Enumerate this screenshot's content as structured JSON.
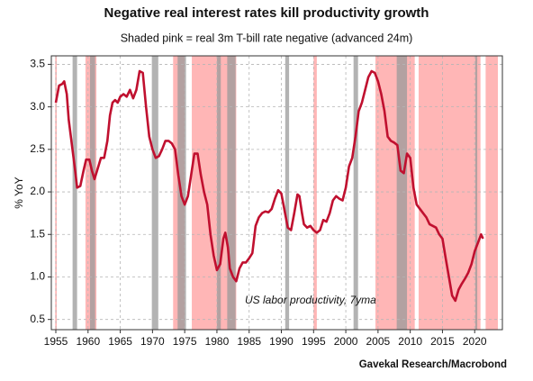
{
  "chart_data": {
    "type": "line",
    "title": "Negative real interest rates kill productivity growth",
    "subtitle": "Shaded pink = real 3m T-bill rate negative (advanced 24m)",
    "y_label": "% YoY",
    "source": "Gavekal Research/Macrobond",
    "xlim": [
      1954.3,
      2024.3
    ],
    "ylim": [
      0.38,
      3.6
    ],
    "xticks": [
      1955,
      1960,
      1965,
      1970,
      1975,
      1980,
      1985,
      1990,
      1995,
      2000,
      2005,
      2010,
      2015,
      2020
    ],
    "yticks": [
      0.5,
      {
        "value": 1,
        "label": "1.0"
      },
      1.5,
      {
        "value": 2,
        "label": "2.0"
      },
      2.5,
      {
        "value": 3,
        "label": "3.0"
      },
      3.5
    ],
    "grid": true,
    "negative_real_rate": {
      "color": "#ffb6b6",
      "spans": [
        [
          1954.9,
          1955.15
        ],
        [
          1959.6,
          1961.3
        ],
        [
          1973.2,
          1975.0
        ],
        [
          1976.1,
          1983.0
        ],
        [
          1995.0,
          1995.5
        ],
        [
          2004.6,
          2010.7
        ],
        [
          2011.3,
          2020.9
        ],
        [
          2021.7,
          2023.6
        ]
      ]
    },
    "recessions": {
      "color": "#999999",
      "spans": [
        [
          1957.6,
          1958.3
        ],
        [
          1960.3,
          1961.1
        ],
        [
          1969.9,
          1970.9
        ],
        [
          1973.9,
          1975.2
        ],
        [
          1980.0,
          1980.6
        ],
        [
          1981.6,
          1982.9
        ],
        [
          1990.6,
          1991.2
        ],
        [
          2001.2,
          2001.9
        ],
        [
          2007.9,
          2009.5
        ],
        [
          2020.1,
          2020.4
        ]
      ]
    },
    "x": [
      1955,
      1955.5,
      1956,
      1956.3,
      1956.7,
      1957,
      1957.5,
      1958,
      1958.3,
      1958.8,
      1959.3,
      1959.7,
      1960.2,
      1960.6,
      1961,
      1961.4,
      1962,
      1962.5,
      1963,
      1963.4,
      1963.8,
      1964.2,
      1964.6,
      1965,
      1965.5,
      1966,
      1966.5,
      1967,
      1967.5,
      1968,
      1968.5,
      1969,
      1969.5,
      1970,
      1970.5,
      1971,
      1971.5,
      1972,
      1972.5,
      1973,
      1973.5,
      1974,
      1974.5,
      1975,
      1975.5,
      1976,
      1976.5,
      1977,
      1977.5,
      1978,
      1978.5,
      1979,
      1979.5,
      1980,
      1980.5,
      1981,
      1981.3,
      1981.7,
      1982,
      1982.5,
      1983,
      1983.5,
      1984,
      1984.5,
      1985,
      1985.5,
      1986,
      1986.5,
      1987,
      1987.5,
      1988,
      1988.5,
      1989,
      1989.5,
      1990,
      1990.5,
      1991,
      1991.5,
      1992,
      1992.5,
      1992.8,
      1993.2,
      1993.5,
      1994,
      1994.5,
      1995,
      1995.5,
      1996,
      1996.5,
      1997,
      1997.5,
      1998,
      1998.5,
      1999,
      1999.5,
      2000,
      2000.5,
      2001,
      2001.5,
      2002,
      2002.5,
      2003,
      2003.5,
      2004,
      2004.5,
      2005,
      2005.5,
      2006,
      2006.5,
      2007,
      2007.5,
      2008,
      2008.5,
      2009,
      2009.5,
      2010,
      2010.5,
      2011,
      2011.5,
      2012,
      2012.5,
      2013,
      2013.5,
      2014,
      2014.5,
      2015,
      2015.5,
      2016,
      2016.5,
      2017,
      2017.5,
      2018,
      2018.5,
      2019,
      2019.5,
      2020,
      2020.5,
      2021,
      2021.3
    ],
    "series": [
      {
        "name": "US labor productivity, 7yma",
        "color": "#c0102f",
        "values": [
          3.05,
          3.25,
          3.27,
          3.3,
          3.15,
          2.85,
          2.55,
          2.25,
          2.05,
          2.07,
          2.25,
          2.38,
          2.38,
          2.25,
          2.15,
          2.25,
          2.4,
          2.4,
          2.6,
          2.9,
          3.05,
          3.08,
          3.05,
          3.12,
          3.15,
          3.12,
          3.2,
          3.1,
          3.2,
          3.42,
          3.4,
          3.0,
          2.65,
          2.5,
          2.4,
          2.42,
          2.5,
          2.6,
          2.6,
          2.57,
          2.5,
          2.2,
          1.95,
          1.85,
          1.95,
          2.2,
          2.45,
          2.45,
          2.2,
          2.0,
          1.85,
          1.5,
          1.25,
          1.08,
          1.15,
          1.45,
          1.52,
          1.35,
          1.1,
          1.0,
          0.95,
          1.1,
          1.17,
          1.17,
          1.22,
          1.28,
          1.6,
          1.7,
          1.75,
          1.77,
          1.76,
          1.8,
          1.92,
          2.02,
          1.98,
          1.78,
          1.58,
          1.55,
          1.75,
          1.97,
          1.95,
          1.75,
          1.62,
          1.58,
          1.6,
          1.55,
          1.52,
          1.55,
          1.67,
          1.65,
          1.75,
          1.9,
          1.95,
          1.92,
          1.9,
          2.05,
          2.3,
          2.4,
          2.65,
          2.95,
          3.05,
          3.2,
          3.35,
          3.42,
          3.4,
          3.3,
          3.15,
          2.95,
          2.65,
          2.6,
          2.58,
          2.55,
          2.25,
          2.22,
          2.45,
          2.4,
          2.05,
          1.85,
          1.8,
          1.75,
          1.7,
          1.62,
          1.6,
          1.58,
          1.5,
          1.45,
          1.22,
          1.0,
          0.78,
          0.72,
          0.85,
          0.92,
          0.98,
          1.05,
          1.15,
          1.3,
          1.4,
          1.5,
          1.45
        ]
      }
    ]
  }
}
